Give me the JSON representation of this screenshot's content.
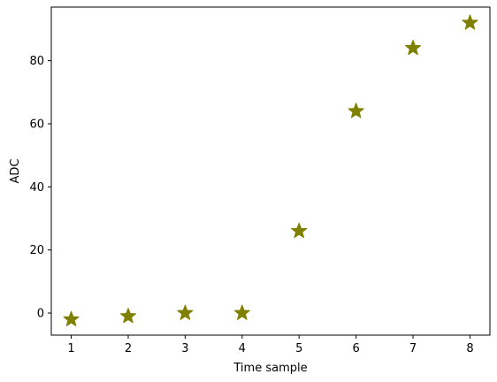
{
  "chart_data": {
    "type": "scatter",
    "title": "",
    "xlabel": "Time sample",
    "ylabel": "ADC",
    "xlim": [
      0.65,
      8.35
    ],
    "ylim": [
      -7,
      97
    ],
    "x_ticks": [
      1,
      2,
      3,
      4,
      5,
      6,
      7,
      8
    ],
    "y_ticks": [
      0,
      20,
      40,
      60,
      80
    ],
    "marker": "star",
    "color": "#808000",
    "grid": false,
    "legend": "none",
    "series": [
      {
        "x": [
          1,
          2,
          3,
          4,
          5,
          6,
          7,
          8
        ],
        "y": [
          -2,
          -1,
          0,
          0,
          26,
          64,
          84,
          92
        ]
      }
    ]
  }
}
